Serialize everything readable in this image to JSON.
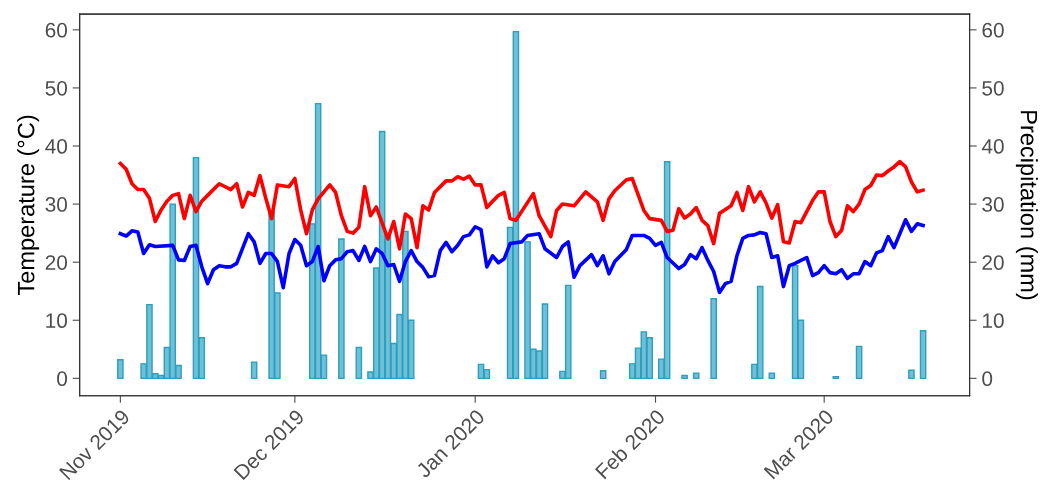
{
  "chart_data": {
    "type": "line",
    "ylabel": "Temperature (°C)",
    "y2label": "Precipitation (mm)",
    "xlim": [
      "2019-10-25",
      "2020-03-26"
    ],
    "xticks": [
      {
        "value": "2019-11-01",
        "label": "Nov 2019"
      },
      {
        "value": "2019-12-01",
        "label": "Dec 2019"
      },
      {
        "value": "2020-01-01",
        "label": "Jan 2020"
      },
      {
        "value": "2020-02-01",
        "label": "Feb 2020"
      },
      {
        "value": "2020-03-01",
        "label": "Mar 2020"
      }
    ],
    "ylim": [
      -3,
      62.7
    ],
    "yticks": [
      0,
      10,
      20,
      30,
      40,
      50,
      60
    ],
    "y2lim": [
      -3,
      62.7
    ],
    "y2ticks": [
      0,
      10,
      20,
      30,
      40,
      50,
      60
    ],
    "grid": false,
    "legend": false,
    "series": [
      {
        "type": "bar",
        "color": "#6fbfd6",
        "x": [
          "2019-11-01",
          "2019-11-05",
          "2019-11-06",
          "2019-11-07",
          "2019-11-08",
          "2019-11-09",
          "2019-11-10",
          "2019-11-11",
          "2019-11-14",
          "2019-11-15",
          "2019-11-24",
          "2019-11-27",
          "2019-11-28",
          "2019-12-04",
          "2019-12-05",
          "2019-12-06",
          "2019-12-09",
          "2019-12-12",
          "2019-12-14",
          "2019-12-15",
          "2019-12-16",
          "2019-12-17",
          "2019-12-18",
          "2019-12-19",
          "2019-12-20",
          "2019-12-21",
          "2020-01-02",
          "2020-01-03",
          "2020-01-07",
          "2020-01-08",
          "2020-01-10",
          "2020-01-11",
          "2020-01-12",
          "2020-01-13",
          "2020-01-16",
          "2020-01-17",
          "2020-01-23",
          "2020-01-28",
          "2020-01-29",
          "2020-01-30",
          "2020-01-31",
          "2020-02-02",
          "2020-02-03",
          "2020-02-06",
          "2020-02-08",
          "2020-02-11",
          "2020-02-18",
          "2020-02-19",
          "2020-02-21",
          "2020-02-25",
          "2020-02-26",
          "2020-03-03",
          "2020-03-07",
          "2020-03-16",
          "2020-03-18"
        ],
        "values": [
          3.2,
          2.5,
          12.7,
          0.8,
          0.5,
          5.3,
          30,
          2.2,
          38,
          7,
          2.8,
          28.7,
          14.7,
          26.6,
          47.3,
          4,
          24,
          5.3,
          1.1,
          19,
          42.5,
          24.4,
          6,
          11,
          25.3,
          10,
          2.4,
          1.5,
          26,
          59.7,
          23.5,
          5,
          4.7,
          12.8,
          1.2,
          16,
          1.3,
          2.5,
          5.2,
          8,
          7,
          3.3,
          37.3,
          0.5,
          0.9,
          13.7,
          2.4,
          15.8,
          0.9,
          19.4,
          10,
          0.3,
          5.5,
          1.4,
          8.2
        ]
      },
      {
        "color": "#ff0000",
        "x": [
          "2019-11-01",
          "2019-11-02",
          "2019-11-03",
          "2019-11-04",
          "2019-11-05",
          "2019-11-06",
          "2019-11-07",
          "2019-11-08",
          "2019-11-09",
          "2019-11-10",
          "2019-11-11",
          "2019-11-12",
          "2019-11-13",
          "2019-11-14",
          "2019-11-15",
          "2019-11-16",
          "2019-11-18",
          "2019-11-20",
          "2019-11-21",
          "2019-11-22",
          "2019-11-23",
          "2019-11-24",
          "2019-11-25",
          "2019-11-26",
          "2019-11-27",
          "2019-11-28",
          "2019-11-30",
          "2019-12-01",
          "2019-12-02",
          "2019-12-03",
          "2019-12-04",
          "2019-12-05",
          "2019-12-07",
          "2019-12-08",
          "2019-12-09",
          "2019-12-10",
          "2019-12-11",
          "2019-12-12",
          "2019-12-13",
          "2019-12-14",
          "2019-12-15",
          "2019-12-17",
          "2019-12-18",
          "2019-12-19",
          "2019-12-20",
          "2019-12-21",
          "2019-12-22",
          "2019-12-23",
          "2019-12-24",
          "2019-12-25",
          "2019-12-27",
          "2019-12-28",
          "2019-12-29",
          "2019-12-30",
          "2019-12-31",
          "2020-01-01",
          "2020-01-02",
          "2020-01-03",
          "2020-01-04",
          "2020-01-05",
          "2020-01-06",
          "2020-01-07",
          "2020-01-08",
          "2020-01-11",
          "2020-01-12",
          "2020-01-14",
          "2020-01-15",
          "2020-01-16",
          "2020-01-18",
          "2020-01-20",
          "2020-01-22",
          "2020-01-23",
          "2020-01-24",
          "2020-01-25",
          "2020-01-27",
          "2020-01-28",
          "2020-01-30",
          "2020-01-31",
          "2020-02-02",
          "2020-02-03",
          "2020-02-04",
          "2020-02-05",
          "2020-02-06",
          "2020-02-07",
          "2020-02-08",
          "2020-02-09",
          "2020-02-10",
          "2020-02-11",
          "2020-02-12",
          "2020-02-14",
          "2020-02-15",
          "2020-02-16",
          "2020-02-17",
          "2020-02-18",
          "2020-02-19",
          "2020-02-20",
          "2020-02-21",
          "2020-02-22",
          "2020-02-23",
          "2020-02-24",
          "2020-02-25",
          "2020-02-26",
          "2020-02-27",
          "2020-02-28",
          "2020-02-29",
          "2020-03-01",
          "2020-03-02",
          "2020-03-03",
          "2020-03-04",
          "2020-03-05",
          "2020-03-06",
          "2020-03-07",
          "2020-03-08",
          "2020-03-09",
          "2020-03-10",
          "2020-03-11",
          "2020-03-12",
          "2020-03-13",
          "2020-03-14",
          "2020-03-15",
          "2020-03-16",
          "2020-03-17",
          "2020-03-18"
        ],
        "values": [
          37,
          36,
          33.5,
          32.5,
          32.5,
          31,
          27,
          29,
          30.5,
          31.5,
          31.8,
          27.5,
          31.5,
          28.7,
          30.5,
          31.5,
          33.5,
          32.5,
          33.5,
          29.5,
          32,
          31.5,
          34.9,
          31,
          27.5,
          33.3,
          33,
          34.4,
          29,
          24.9,
          29,
          30.9,
          33.3,
          32,
          28,
          25.3,
          25,
          26,
          33,
          28,
          29.5,
          24,
          27,
          22.3,
          28.3,
          27.5,
          22.5,
          29.7,
          29,
          32,
          34,
          34,
          34.7,
          34.3,
          34.8,
          33.3,
          33.3,
          29.4,
          30.5,
          31.5,
          32,
          27.5,
          27.2,
          31.8,
          28,
          24.4,
          28.9,
          30,
          29.7,
          32.1,
          30.4,
          27.2,
          30.9,
          32.3,
          34.2,
          34.4,
          28.9,
          27.5,
          27.2,
          25.3,
          25.5,
          29.2,
          27.6,
          28.3,
          29.4,
          27.2,
          26.3,
          23.2,
          28.4,
          29.7,
          32,
          28.9,
          33,
          30.4,
          32.1,
          30.2,
          27.6,
          29.9,
          23.5,
          23.3,
          27,
          26.8,
          28.7,
          30.6,
          32.1,
          32.1,
          27,
          24.4,
          25.5,
          29.7,
          28.7,
          30,
          32.5,
          33.2,
          35,
          34.9,
          35.7,
          36.4,
          37.3,
          36.4,
          33.8,
          32.1,
          32.4
        ]
      },
      {
        "color": "#0000ff",
        "x": [
          "2019-11-01",
          "2019-11-02",
          "2019-11-03",
          "2019-11-04",
          "2019-11-05",
          "2019-11-06",
          "2019-11-07",
          "2019-11-10",
          "2019-11-11",
          "2019-11-12",
          "2019-11-13",
          "2019-11-14",
          "2019-11-15",
          "2019-11-16",
          "2019-11-17",
          "2019-11-18",
          "2019-11-19",
          "2019-11-20",
          "2019-11-21",
          "2019-11-23",
          "2019-11-24",
          "2019-11-25",
          "2019-11-26",
          "2019-11-27",
          "2019-11-28",
          "2019-11-29",
          "2019-11-30",
          "2019-12-01",
          "2019-12-02",
          "2019-12-03",
          "2019-12-04",
          "2019-12-05",
          "2019-12-06",
          "2019-12-07",
          "2019-12-08",
          "2019-12-09",
          "2019-12-10",
          "2019-12-11",
          "2019-12-12",
          "2019-12-13",
          "2019-12-14",
          "2019-12-15",
          "2019-12-16",
          "2019-12-17",
          "2019-12-18",
          "2019-12-19",
          "2019-12-20",
          "2019-12-21",
          "2019-12-22",
          "2019-12-23",
          "2019-12-24",
          "2019-12-25",
          "2019-12-26",
          "2019-12-27",
          "2019-12-28",
          "2019-12-29",
          "2019-12-30",
          "2019-12-31",
          "2020-01-01",
          "2020-01-02",
          "2020-01-03",
          "2020-01-04",
          "2020-01-05",
          "2020-01-06",
          "2020-01-07",
          "2020-01-09",
          "2020-01-10",
          "2020-01-12",
          "2020-01-13",
          "2020-01-15",
          "2020-01-16",
          "2020-01-17",
          "2020-01-18",
          "2020-01-19",
          "2020-01-21",
          "2020-01-22",
          "2020-01-23",
          "2020-01-24",
          "2020-01-25",
          "2020-01-27",
          "2020-01-28",
          "2020-01-30",
          "2020-01-31",
          "2020-02-01",
          "2020-02-02",
          "2020-02-03",
          "2020-02-05",
          "2020-02-06",
          "2020-02-07",
          "2020-02-08",
          "2020-02-09",
          "2020-02-10",
          "2020-02-11",
          "2020-02-12",
          "2020-02-13",
          "2020-02-14",
          "2020-02-15",
          "2020-02-16",
          "2020-02-17",
          "2020-02-18",
          "2020-02-19",
          "2020-02-20",
          "2020-02-21",
          "2020-02-22",
          "2020-02-23",
          "2020-02-24",
          "2020-02-25",
          "2020-02-26",
          "2020-02-27",
          "2020-02-28",
          "2020-02-29",
          "2020-03-01",
          "2020-03-02",
          "2020-03-03",
          "2020-03-04",
          "2020-03-05",
          "2020-03-06",
          "2020-03-07",
          "2020-03-08",
          "2020-03-09",
          "2020-03-10",
          "2020-03-11",
          "2020-03-12",
          "2020-03-13",
          "2020-03-14",
          "2020-03-15",
          "2020-03-16",
          "2020-03-17",
          "2020-03-18"
        ],
        "values": [
          24.9,
          24.5,
          25.4,
          25.2,
          21.5,
          23,
          22.7,
          22.9,
          20.4,
          20.3,
          22.7,
          22.9,
          19.2,
          16.3,
          18.7,
          19.4,
          19.2,
          19.2,
          19.8,
          24.9,
          23.5,
          19.8,
          21.5,
          21.5,
          20.1,
          15.6,
          21.5,
          23.9,
          22.9,
          19.4,
          20.1,
          22.7,
          16.8,
          19.4,
          20.4,
          20.6,
          21.8,
          22,
          20.3,
          22.7,
          20.1,
          22.3,
          21.5,
          19.4,
          19.6,
          16.7,
          20.1,
          22,
          20.1,
          19.1,
          17.5,
          17.7,
          22,
          23.4,
          21.8,
          22.9,
          24.4,
          24.7,
          26.1,
          25.6,
          19.2,
          21.1,
          19.9,
          20.6,
          23.2,
          23.5,
          24.6,
          24.9,
          22.3,
          20.8,
          22.7,
          23.5,
          17.4,
          19.4,
          21.3,
          19.4,
          21.1,
          18,
          20.1,
          22.2,
          24.6,
          24.6,
          24.1,
          22.9,
          23.4,
          20.8,
          18.9,
          19.6,
          21.3,
          20.6,
          22.5,
          20.3,
          18.4,
          14.8,
          16.3,
          16.7,
          21.1,
          24.1,
          24.6,
          24.7,
          25.1,
          24.9,
          20.8,
          21.1,
          15.8,
          19.4,
          19.8,
          20.3,
          20.8,
          17.7,
          18.2,
          19.4,
          18.2,
          18,
          18.7,
          17.2,
          18,
          18,
          20.1,
          19.4,
          21.6,
          22,
          24.4,
          22.5,
          24.9,
          27.3,
          25.3,
          26.6,
          26.3
        ]
      }
    ]
  }
}
